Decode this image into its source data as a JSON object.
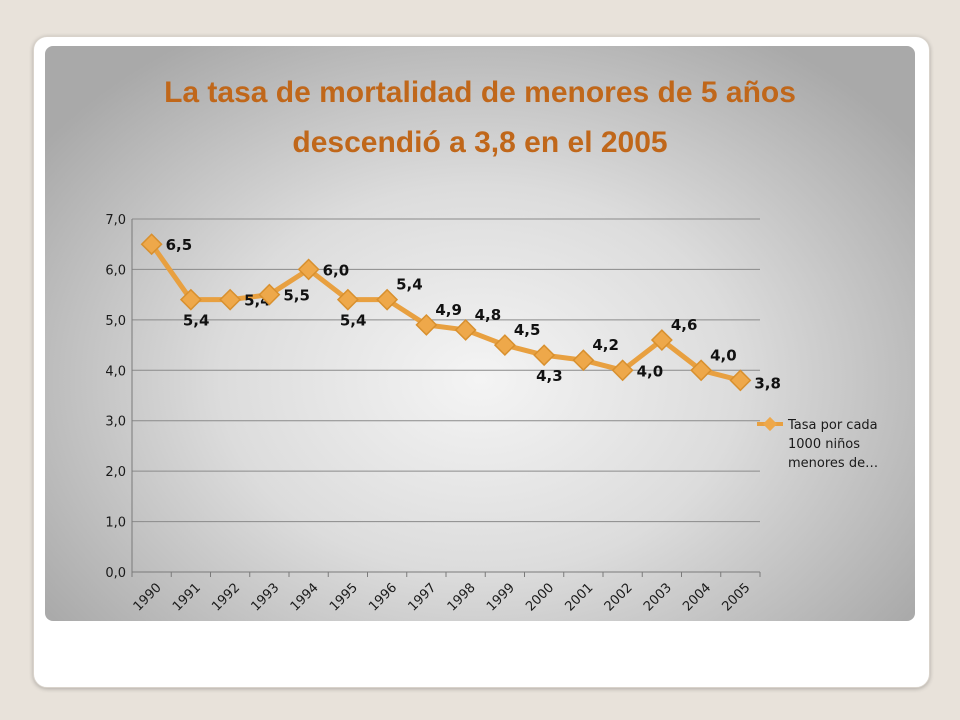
{
  "chart_data": {
    "type": "line",
    "title_lines": [
      "La tasa de mortalidad de menores de 5 años",
      "descendió a 3,8 en el 2005"
    ],
    "categories": [
      "1990",
      "1991",
      "1992",
      "1993",
      "1994",
      "1995",
      "1996",
      "1997",
      "1998",
      "1999",
      "2000",
      "2001",
      "2002",
      "2003",
      "2004",
      "2005"
    ],
    "series": [
      {
        "name_lines": [
          "Tasa por cada",
          "1000 niños",
          "menores de…"
        ],
        "values": [
          6.5,
          5.4,
          5.4,
          5.5,
          6.0,
          5.4,
          5.4,
          4.9,
          4.8,
          4.5,
          4.3,
          4.2,
          4.0,
          4.6,
          4.0,
          3.8
        ],
        "data_labels": [
          "6,5",
          "5,4",
          "5,4",
          "5,5",
          "6,0",
          "5,4",
          "5,4",
          "4,9",
          "4,8",
          "4,5",
          "4,3",
          "4,2",
          "4,0",
          "4,6",
          "4,0",
          "3,8"
        ],
        "label_positions": [
          "right",
          "below",
          "right",
          "right",
          "right",
          "below",
          "above-right",
          "above-right",
          "above-right",
          "above-right",
          "below",
          "above-right",
          "right",
          "above-right",
          "above-right",
          "below-right"
        ]
      }
    ],
    "y_ticks": [
      "0,0",
      "1,0",
      "2,0",
      "3,0",
      "4,0",
      "5,0",
      "6,0",
      "7,0"
    ],
    "ylim": [
      0,
      7
    ],
    "grid": true,
    "legend_position": "right",
    "colors": {
      "line": "#e8a040",
      "marker": "#eea84a",
      "title": "#c0671a",
      "grid": "#8a8a8a"
    }
  }
}
